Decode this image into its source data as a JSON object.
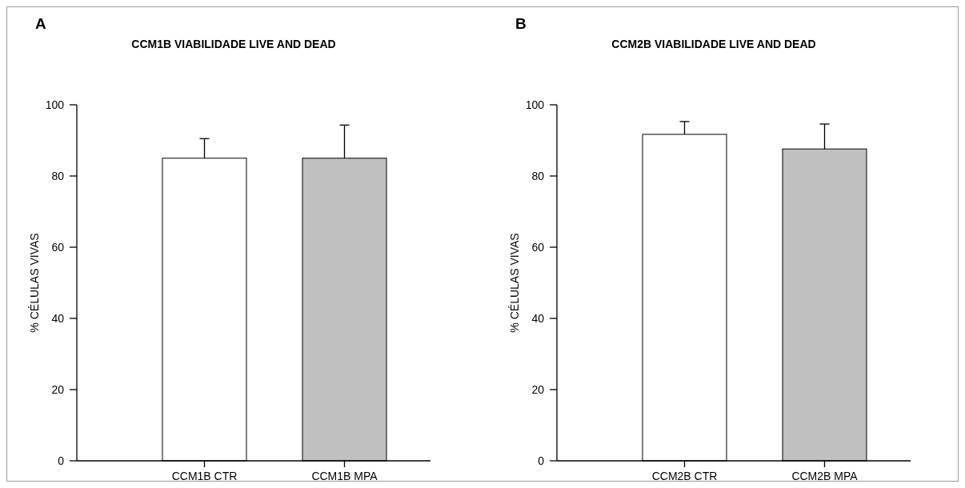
{
  "chart_data": [
    {
      "type": "bar",
      "title": "CCM1B VIABILIDADE LIVE AND DEAD",
      "annotations": [
        "A"
      ],
      "ylabel": "% CÉLULAS VIVAS",
      "categories": [
        "CCM1B CTR",
        "CCM1B MPA"
      ],
      "values": [
        85.0,
        85.0
      ],
      "colors": [
        "#ffffff",
        "#c0c0c0"
      ],
      "errors": [
        [
          85.0,
          90.5
        ],
        [
          85.0,
          94.3
        ]
      ],
      "ylim": [
        0,
        100
      ],
      "yticks": [
        0,
        20,
        40,
        60,
        80,
        100
      ]
    },
    {
      "type": "bar",
      "title": "CCM2B VIABILIDADE LIVE AND DEAD",
      "annotations": [
        "B"
      ],
      "ylabel": "% CÉLULAS VIVAS",
      "categories": [
        "CCM2B CTR",
        "CCM2B MPA"
      ],
      "values": [
        91.7,
        87.6
      ],
      "colors": [
        "#ffffff",
        "#c0c0c0"
      ],
      "errors": [
        [
          91.7,
          95.3
        ],
        [
          87.6,
          94.6
        ]
      ],
      "ylim": [
        0,
        100
      ],
      "yticks": [
        0,
        20,
        40,
        60,
        80,
        100
      ]
    }
  ]
}
